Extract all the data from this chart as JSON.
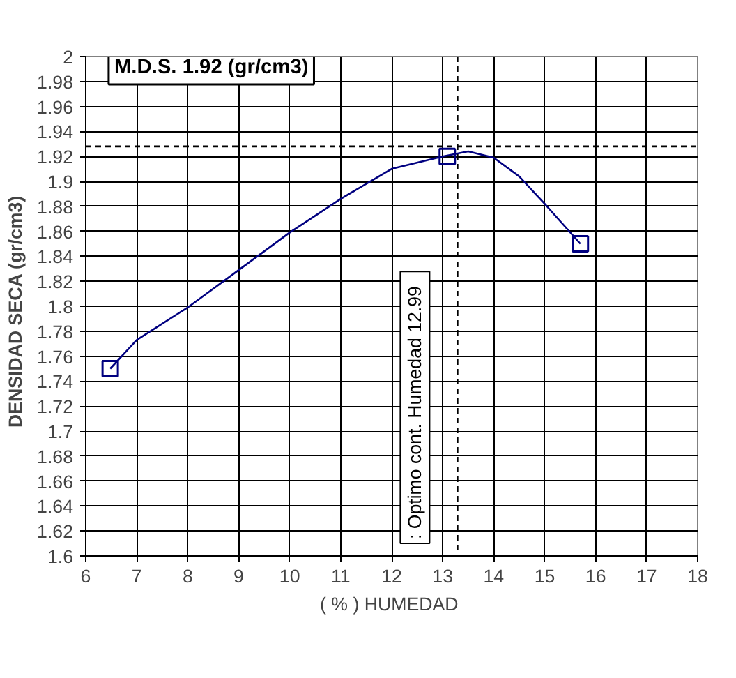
{
  "chart_data": {
    "type": "line",
    "xlabel": "( % )  HUMEDAD",
    "ylabel": "DENSIDAD  SECA  (gr/cm3)",
    "xlim": [
      6,
      18
    ],
    "xticks": [
      6,
      7,
      8,
      9,
      10,
      11,
      12,
      13,
      14,
      15,
      16,
      17,
      18
    ],
    "ylim": [
      1.6,
      2
    ],
    "yticks": [
      1.6,
      1.62,
      1.64,
      1.66,
      1.68,
      1.7,
      1.72,
      1.74,
      1.76,
      1.78,
      1.8,
      1.82,
      1.84,
      1.86,
      1.88,
      1.9,
      1.92,
      1.94,
      1.96,
      1.98,
      2
    ],
    "grid": true,
    "annotations": [
      "M.D.S. 1.92 (gr/cm3)"
    ],
    "series": [
      {
        "type": "scatter",
        "marker": "square",
        "color": "#000080",
        "x": [
          6.48,
          13.09,
          15.7
        ],
        "values": [
          1.75,
          1.92,
          1.85
        ]
      },
      {
        "marker": "none",
        "line_style": "solid",
        "color": "#000080",
        "x": [
          6.48,
          7,
          8,
          9,
          10,
          11,
          12,
          13,
          13.5,
          14,
          14.5,
          15,
          15.7
        ],
        "values": [
          1.75,
          1.773,
          1.799,
          1.829,
          1.859,
          1.886,
          1.91,
          1.92,
          1.924,
          1.919,
          1.904,
          1.882,
          1.85
        ]
      }
    ],
    "ref_lines": [
      {
        "axis": "y",
        "value": 1.928,
        "line_style": "dashed",
        "color": "#000000"
      },
      {
        "axis": "x",
        "value": 13.29,
        "label": ": Optimo  cont. Humedad  12.99",
        "line_style": "dashed",
        "color": "#000000"
      }
    ]
  }
}
